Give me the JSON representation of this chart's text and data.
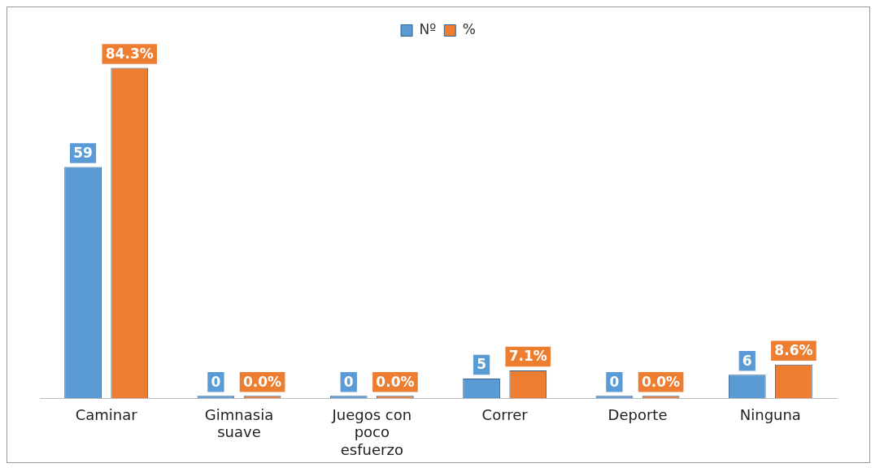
{
  "chart_data": {
    "type": "bar",
    "categories": [
      "Caminar",
      "Gimnasia suave",
      "Juegos con poco esfuerzo",
      "Correr",
      "Deporte",
      "Ninguna"
    ],
    "series": [
      {
        "name": "Nº",
        "color": "#5b9bd5",
        "values": [
          59,
          0,
          0,
          5,
          0,
          6
        ],
        "value_labels": [
          "59",
          "0",
          "0",
          "5",
          "0",
          "6"
        ]
      },
      {
        "name": "%",
        "color": "#ed7d31",
        "values": [
          84.3,
          0,
          0,
          7.1,
          0,
          8.6
        ],
        "value_labels": [
          "84.3%",
          "0.0%",
          "0.0%",
          "7.1%",
          "0.0%",
          "8.6%"
        ]
      }
    ],
    "legend": "top",
    "grid": false
  }
}
